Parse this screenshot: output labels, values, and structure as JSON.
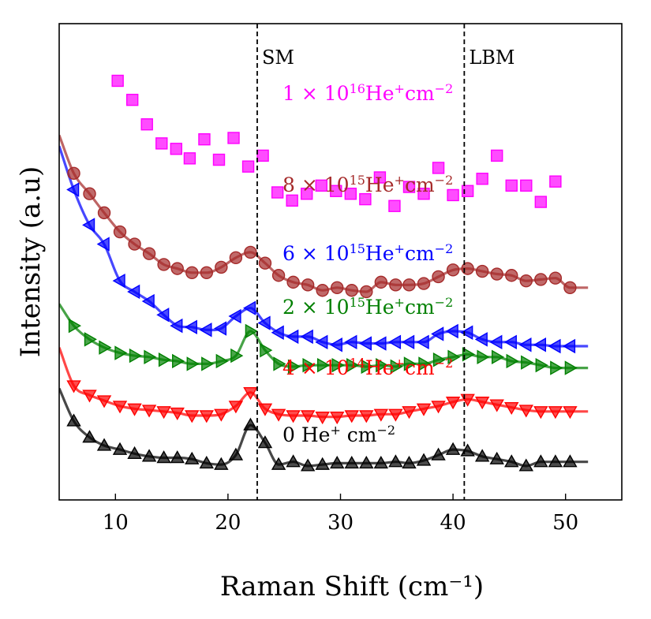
{
  "chart_data": {
    "type": "scatter",
    "title": "",
    "xlabel": "Raman Shift (cm⁻¹)",
    "ylabel": "Intensity (a.u)",
    "xlim": [
      5,
      55
    ],
    "xticks": [
      10,
      20,
      30,
      40,
      50
    ],
    "y_tick_labels_shown": false,
    "grid": false,
    "annotations": [
      {
        "label": "SM",
        "x": 22.6,
        "style": "vertical dashed line"
      },
      {
        "label": "LBM",
        "x": 41.0,
        "style": "vertical dashed line"
      }
    ],
    "series": [
      {
        "name": "1 × 10¹⁶He⁺cm⁻²",
        "label_parts": {
          "mant": "1 × 10",
          "exp": "16",
          "mid": "He",
          "ion": "+",
          "unit": "cm",
          "uexp": "−2"
        },
        "color": "#ff00ff",
        "marker": "square",
        "fit": false,
        "x": [
          10.2,
          11.5,
          12.8,
          14.1,
          15.4,
          16.6,
          17.9,
          19.2,
          20.5,
          21.8,
          23.1,
          24.4,
          25.7,
          27.0,
          28.3,
          29.6,
          30.9,
          32.2,
          33.5,
          34.8,
          36.1,
          37.4,
          38.7,
          40.0,
          41.3,
          42.6,
          43.9,
          45.2,
          46.5,
          47.8,
          49.1
        ],
        "y": [
          2.58,
          2.44,
          2.26,
          2.12,
          2.08,
          2.01,
          2.15,
          2.0,
          2.16,
          1.95,
          2.03,
          1.76,
          1.7,
          1.75,
          1.81,
          1.77,
          1.75,
          1.71,
          1.87,
          1.66,
          1.8,
          1.75,
          1.94,
          1.74,
          1.77,
          1.86,
          2.03,
          1.81,
          1.81,
          1.69,
          1.84
        ]
      },
      {
        "name": "8 × 10¹⁵He⁺cm⁻²",
        "label_parts": {
          "mant": "8 × 10",
          "exp": "15",
          "mid": "He",
          "ion": "+",
          "unit": "cm",
          "uexp": "−2"
        },
        "color": "#a52a2a",
        "marker": "circle",
        "fit": true,
        "x": [
          6.3,
          7.7,
          9.0,
          10.4,
          11.7,
          13.0,
          14.3,
          15.5,
          16.8,
          18.1,
          19.4,
          20.7,
          22.0,
          23.3,
          24.5,
          25.8,
          27.1,
          28.4,
          29.7,
          31.0,
          32.3,
          33.6,
          34.9,
          36.1,
          37.4,
          38.7,
          40.0,
          41.3,
          42.6,
          43.9,
          45.2,
          46.5,
          47.8,
          49.1,
          50.4
        ],
        "y": [
          1.9,
          1.75,
          1.61,
          1.47,
          1.38,
          1.31,
          1.23,
          1.2,
          1.17,
          1.17,
          1.21,
          1.28,
          1.32,
          1.24,
          1.15,
          1.1,
          1.08,
          1.04,
          1.06,
          1.04,
          1.03,
          1.1,
          1.08,
          1.08,
          1.09,
          1.14,
          1.19,
          1.2,
          1.18,
          1.16,
          1.15,
          1.11,
          1.12,
          1.13,
          1.06
        ],
        "fit_y_at_5": 2.18
      },
      {
        "name": "6 × 10¹⁵He⁺cm⁻²",
        "label_parts": {
          "mant": "6 × 10",
          "exp": "15",
          "mid": "He",
          "ion": "+",
          "unit": "cm",
          "uexp": "−2"
        },
        "color": "#0000ff",
        "marker": "triangle-left",
        "fit": true,
        "x": [
          6.3,
          7.7,
          9.0,
          10.4,
          11.7,
          13.0,
          14.3,
          15.5,
          16.8,
          18.1,
          19.4,
          20.7,
          22.0,
          23.3,
          24.5,
          25.8,
          27.1,
          28.4,
          29.7,
          31.0,
          32.3,
          33.6,
          34.9,
          36.1,
          37.4,
          38.7,
          40.0,
          41.3,
          42.6,
          43.9,
          45.2,
          46.5,
          47.8,
          49.1,
          50.4
        ],
        "y": [
          1.78,
          1.52,
          1.38,
          1.11,
          1.03,
          0.96,
          0.86,
          0.78,
          0.77,
          0.75,
          0.76,
          0.85,
          0.91,
          0.8,
          0.73,
          0.7,
          0.7,
          0.66,
          0.64,
          0.66,
          0.65,
          0.65,
          0.66,
          0.66,
          0.66,
          0.72,
          0.74,
          0.73,
          0.68,
          0.66,
          0.66,
          0.64,
          0.64,
          0.63,
          0.63
        ],
        "fit_y_at_5": 2.1
      },
      {
        "name": "2 × 10¹⁵He⁺cm⁻²",
        "label_parts": {
          "mant": "2 × 10",
          "exp": "15",
          "mid": "He",
          "ion": "+",
          "unit": "cm",
          "uexp": "−2"
        },
        "color": "#008000",
        "marker": "triangle-right",
        "fit": true,
        "x": [
          6.3,
          7.7,
          9.0,
          10.4,
          11.7,
          13.0,
          14.3,
          15.5,
          16.8,
          18.1,
          19.4,
          20.7,
          22.0,
          23.3,
          24.5,
          25.8,
          27.1,
          28.4,
          29.7,
          31.0,
          32.3,
          33.6,
          34.9,
          36.1,
          37.4,
          38.7,
          40.0,
          41.3,
          42.6,
          43.9,
          45.2,
          46.5,
          47.8,
          49.1,
          50.4
        ],
        "y": [
          0.78,
          0.68,
          0.62,
          0.58,
          0.56,
          0.55,
          0.53,
          0.52,
          0.5,
          0.5,
          0.52,
          0.56,
          0.74,
          0.6,
          0.5,
          0.48,
          0.49,
          0.49,
          0.49,
          0.49,
          0.48,
          0.49,
          0.48,
          0.5,
          0.5,
          0.53,
          0.55,
          0.57,
          0.55,
          0.55,
          0.52,
          0.51,
          0.49,
          0.47,
          0.47
        ],
        "fit_y_at_5": 0.94
      },
      {
        "name": "4 × 10¹⁴He⁺cm⁻²",
        "label_parts": {
          "mant": "4 × 10",
          "exp": "14",
          "mid": "He",
          "ion": "+",
          "unit": "cm",
          "uexp": "−2"
        },
        "color": "#ff0000",
        "marker": "triangle-down",
        "fit": true,
        "x": [
          6.3,
          7.7,
          9.0,
          10.4,
          11.7,
          13.0,
          14.3,
          15.5,
          16.8,
          18.1,
          19.4,
          20.7,
          22.0,
          23.3,
          24.5,
          25.8,
          27.1,
          28.4,
          29.7,
          31.0,
          32.3,
          33.6,
          34.9,
          36.1,
          37.4,
          38.7,
          40.0,
          41.3,
          42.6,
          43.9,
          45.2,
          46.5,
          47.8,
          49.1,
          50.4
        ],
        "y": [
          0.34,
          0.27,
          0.23,
          0.19,
          0.17,
          0.16,
          0.15,
          0.14,
          0.12,
          0.12,
          0.13,
          0.19,
          0.29,
          0.17,
          0.13,
          0.12,
          0.12,
          0.11,
          0.11,
          0.12,
          0.12,
          0.13,
          0.13,
          0.15,
          0.17,
          0.19,
          0.22,
          0.24,
          0.22,
          0.2,
          0.18,
          0.16,
          0.15,
          0.15,
          0.15
        ],
        "fit_y_at_5": 0.62
      },
      {
        "name": "0 He⁺ cm⁻²",
        "label_parts": {
          "mant": "0",
          "exp": "",
          "mid": " He",
          "ion": "+",
          "unit": " cm",
          "uexp": "−2"
        },
        "color": "#000000",
        "marker": "triangle-up",
        "fit": true,
        "x": [
          6.3,
          7.7,
          9.0,
          10.4,
          11.7,
          13.0,
          14.3,
          15.5,
          16.8,
          18.1,
          19.4,
          20.7,
          22.0,
          23.3,
          24.5,
          25.8,
          27.1,
          28.4,
          29.7,
          31.0,
          32.3,
          33.6,
          34.9,
          36.1,
          37.4,
          38.7,
          40.0,
          41.3,
          42.6,
          43.9,
          45.2,
          46.5,
          47.8,
          49.1,
          50.4
        ],
        "y": [
          0.08,
          -0.04,
          -0.1,
          -0.13,
          -0.16,
          -0.18,
          -0.19,
          -0.19,
          -0.2,
          -0.23,
          -0.24,
          -0.17,
          0.05,
          -0.08,
          -0.24,
          -0.22,
          -0.25,
          -0.24,
          -0.23,
          -0.23,
          -0.23,
          -0.23,
          -0.22,
          -0.23,
          -0.21,
          -0.17,
          -0.13,
          -0.14,
          -0.18,
          -0.2,
          -0.22,
          -0.25,
          -0.22,
          -0.22,
          -0.22
        ],
        "fit_y_at_5": 0.32
      }
    ]
  }
}
